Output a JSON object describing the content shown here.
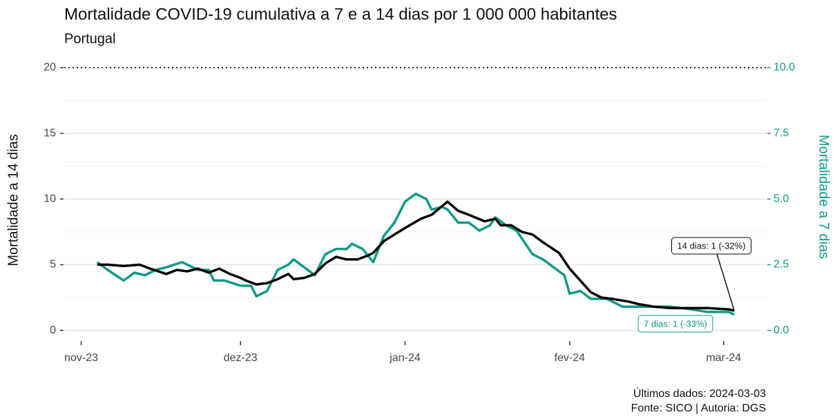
{
  "chart_data": {
    "type": "line",
    "title": "Mortalidade COVID-19 cumulativa a 7 e a 14 dias por 1 000 000 habitantes",
    "subtitle": "Portugal",
    "y_label": "Mortalidade a 14 dias",
    "y2_label": "Mortalidade a 7 dias",
    "xlim": [
      -3.2,
      129.1
    ],
    "xticks": [
      {
        "value": 0,
        "label": "nov-23"
      },
      {
        "value": 30,
        "label": "dez-23"
      },
      {
        "value": 61,
        "label": "jan-24"
      },
      {
        "value": 92,
        "label": "fev-24"
      },
      {
        "value": 121,
        "label": "mar-24"
      }
    ],
    "ylim": [
      -0.6,
      20
    ],
    "yticks": [
      0,
      5,
      10,
      15,
      20
    ],
    "y2lim": [
      -0.3,
      10
    ],
    "y2ticks": [
      {
        "value": 0,
        "label": "0.0"
      },
      2.5,
      {
        "value": 5,
        "label": "5.0"
      },
      7.5,
      {
        "value": 10,
        "label": "10.0"
      }
    ],
    "minor_gridlines": [
      2.5,
      7.5,
      12.5,
      17.5
    ],
    "dotted_line": 20,
    "grid": true,
    "series": [
      {
        "name": "14 dias",
        "color": "#000000",
        "x": [
          3,
          5,
          8,
          11,
          13,
          16,
          18,
          20,
          22,
          24,
          26,
          28,
          30,
          31,
          33,
          35,
          37,
          39,
          40,
          42,
          44,
          46,
          48,
          50,
          52,
          54,
          55,
          57,
          59,
          61,
          64,
          66,
          69,
          71,
          73,
          76,
          78,
          79,
          81,
          83,
          85,
          87,
          90,
          92,
          94,
          96,
          98,
          100,
          103,
          105,
          108,
          111,
          113,
          116,
          118,
          122,
          123
        ],
        "values": [
          5.0,
          5.0,
          4.9,
          5.0,
          4.7,
          4.3,
          4.6,
          4.5,
          4.7,
          4.4,
          4.7,
          4.3,
          4.0,
          3.8,
          3.5,
          3.6,
          3.9,
          4.3,
          3.9,
          4.0,
          4.3,
          5.1,
          5.6,
          5.4,
          5.4,
          5.7,
          5.9,
          6.8,
          7.3,
          7.8,
          8.5,
          8.8,
          9.8,
          9.1,
          8.8,
          8.3,
          8.5,
          8.0,
          8.0,
          7.5,
          7.3,
          6.7,
          5.9,
          4.7,
          3.8,
          2.9,
          2.5,
          2.4,
          2.2,
          2.0,
          1.8,
          1.7,
          1.7,
          1.7,
          1.7,
          1.6,
          1.5
        ]
      },
      {
        "name": "7 dias",
        "color": "#0e9a88",
        "axis": "y2",
        "x": [
          3,
          5,
          8,
          10,
          12,
          14,
          16,
          19,
          20,
          22,
          24,
          25,
          27,
          30,
          32,
          33,
          35,
          37,
          39,
          40,
          42,
          44,
          45,
          46,
          48,
          50,
          51,
          53,
          55,
          57,
          59,
          61,
          63,
          65,
          66,
          68,
          69,
          71,
          73,
          75,
          77,
          78,
          80,
          82,
          85,
          87,
          89,
          91,
          92,
          94,
          96,
          99,
          102,
          105,
          108,
          111,
          115,
          118,
          122,
          123
        ],
        "values": [
          2.6,
          2.3,
          1.9,
          2.2,
          2.1,
          2.3,
          2.4,
          2.6,
          2.5,
          2.3,
          2.3,
          1.9,
          1.9,
          1.7,
          1.7,
          1.3,
          1.5,
          2.3,
          2.5,
          2.7,
          2.4,
          2.1,
          2.5,
          2.9,
          3.1,
          3.1,
          3.3,
          3.1,
          2.6,
          3.6,
          4.1,
          4.9,
          5.2,
          5.0,
          4.6,
          4.7,
          4.6,
          4.1,
          4.1,
          3.8,
          4.0,
          4.3,
          4.0,
          3.8,
          2.9,
          2.7,
          2.4,
          2.1,
          1.4,
          1.5,
          1.2,
          1.2,
          0.9,
          0.9,
          0.9,
          0.9,
          0.8,
          0.7,
          0.7,
          0.6
        ]
      }
    ],
    "annotations": [
      {
        "text": "14 dias: 1 (-32%)",
        "series": 0
      },
      {
        "text": "7 dias: 1 (-33%)",
        "series": 1
      }
    ],
    "footnotes": [
      "Últimos dados: 2024-03-03",
      "Fonte: SICO | Autoria: DGS"
    ]
  }
}
